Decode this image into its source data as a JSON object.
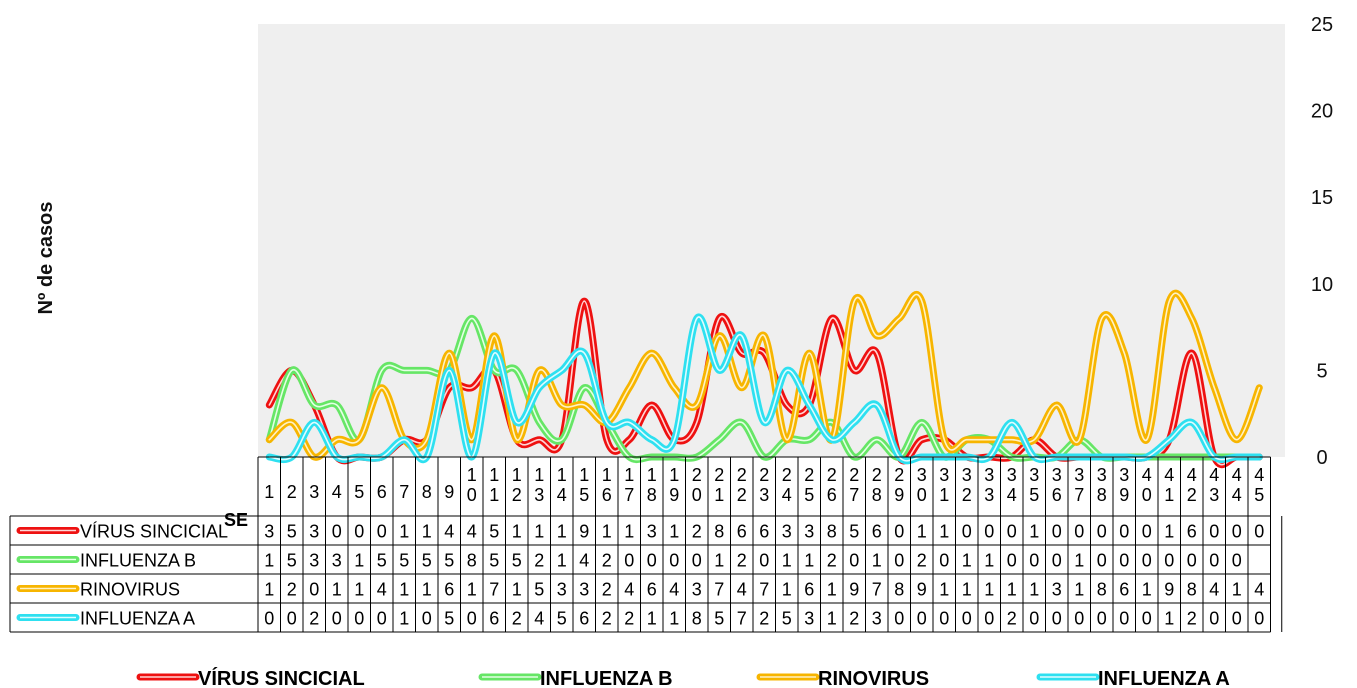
{
  "chart_data": {
    "type": "line",
    "title": "",
    "ylabel": "Nº de casos",
    "xlabel": "SE",
    "ylim": [
      0,
      25
    ],
    "y_ticks": [
      0,
      5,
      10,
      15,
      20,
      25
    ],
    "y_axis_side": "right",
    "grid": false,
    "legend_position": "bottom",
    "categories": [
      "1",
      "2",
      "3",
      "4",
      "5",
      "6",
      "7",
      "8",
      "9",
      "10",
      "11",
      "12",
      "13",
      "14",
      "15",
      "16",
      "17",
      "18",
      "19",
      "20",
      "21",
      "22",
      "23",
      "24",
      "25",
      "26",
      "27",
      "28",
      "29",
      "30",
      "31",
      "32",
      "33",
      "34",
      "35",
      "36",
      "37",
      "38",
      "39",
      "40",
      "41",
      "42",
      "43",
      "44",
      "45"
    ],
    "series": [
      {
        "name": "VÍRUS SINCICIAL",
        "color": "#ee1111",
        "highlight": "#ffd5d5",
        "values": [
          3,
          5,
          3,
          0,
          0,
          0,
          1,
          1,
          4,
          4,
          5,
          1,
          1,
          1,
          9,
          1,
          1,
          3,
          1,
          2,
          8,
          6,
          6,
          3,
          3,
          8,
          5,
          6,
          0,
          1,
          1,
          0,
          0,
          0,
          1,
          0,
          0,
          0,
          0,
          0,
          1,
          6,
          0,
          0,
          0
        ]
      },
      {
        "name": "INFLUENZA B",
        "color": "#66e666",
        "highlight": "#e4ffe4",
        "values": [
          1,
          5,
          3,
          3,
          1,
          5,
          5,
          5,
          5,
          8,
          5,
          5,
          2,
          1,
          4,
          2,
          0,
          0,
          0,
          0,
          1,
          2,
          0,
          1,
          1,
          2,
          0,
          1,
          0,
          2,
          0,
          1,
          1,
          0,
          0,
          0,
          1,
          0,
          0,
          0,
          0,
          0,
          0,
          0,
          null
        ]
      },
      {
        "name": "RINOVIRUS",
        "color": "#f7b500",
        "highlight": "#fff2c4",
        "values": [
          1,
          2,
          0,
          1,
          1,
          4,
          1,
          1,
          6,
          1,
          7,
          1,
          5,
          3,
          3,
          2,
          4,
          6,
          4,
          3,
          7,
          4,
          7,
          1,
          6,
          1,
          9,
          7,
          8,
          9,
          1,
          1,
          1,
          1,
          1,
          3,
          1,
          8,
          6,
          1,
          9,
          8,
          4,
          1,
          4
        ]
      },
      {
        "name": "INFLUENZA A",
        "color": "#2ee0f0",
        "highlight": "#e0fcff",
        "values": [
          0,
          0,
          2,
          0,
          0,
          0,
          1,
          0,
          5,
          0,
          6,
          2,
          4,
          5,
          6,
          2,
          2,
          1,
          1,
          8,
          5,
          7,
          2,
          5,
          3,
          1,
          2,
          3,
          0,
          0,
          0,
          0,
          0,
          2,
          0,
          0,
          0,
          0,
          0,
          0,
          1,
          2,
          0,
          0,
          0
        ]
      }
    ]
  }
}
